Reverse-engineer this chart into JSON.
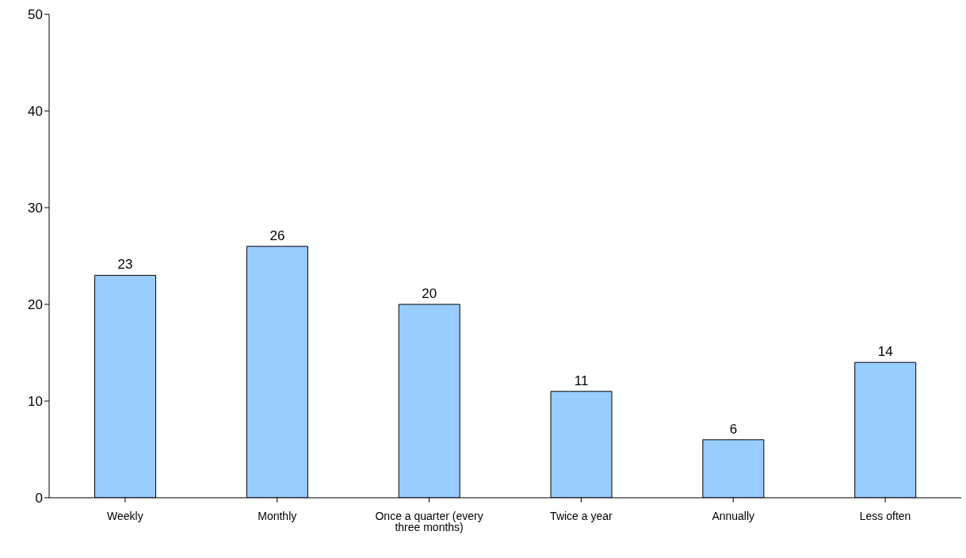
{
  "chart_data": {
    "type": "bar",
    "categories": [
      "Weekly",
      "Monthly",
      "Once a quarter (every three months)",
      "Twice a year",
      "Annually",
      "Less often"
    ],
    "values": [
      23,
      26,
      20,
      11,
      6,
      14
    ],
    "color": "#99ccff",
    "ylim": [
      0,
      50
    ],
    "yticks": [
      0,
      10,
      20,
      30,
      40,
      50
    ],
    "grid": false,
    "legend": false,
    "data_labels": true
  }
}
